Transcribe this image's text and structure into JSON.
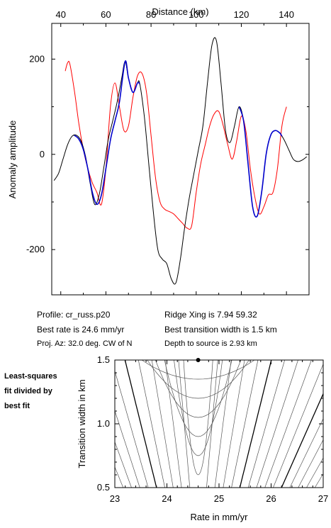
{
  "info": {
    "profile": "Profile: cr_russ.p20",
    "best_rate": "Best rate is 24.6 mm/yr",
    "proj_az": "Proj. Az: 32.0 deg. CW of N",
    "ridge_xing": "Ridge Xing is 7.94 59.32",
    "best_width": "Best transition width is 1.5 km",
    "depth": "Depth to source is   2.93 km"
  },
  "side_note": [
    "Least-squares",
    "fit divided by",
    "best fit"
  ],
  "chart_data": [
    {
      "type": "line",
      "xlabel": "Distance (km)",
      "ylabel": "Anomaly amplitude",
      "xlim": [
        36,
        150
      ],
      "ylim": [
        -295,
        275
      ],
      "x_ticks": [
        40,
        60,
        80,
        100,
        120,
        140
      ],
      "y_ticks": [
        -200,
        0,
        200
      ],
      "x_axis_position": "top",
      "grid": false,
      "colors": {
        "observed": "#000000",
        "fit": "#0000cc",
        "model": "#ff0000"
      },
      "series": [
        {
          "role": "observed",
          "x": [
            37,
            39,
            41,
            43,
            45,
            47,
            49,
            51,
            53,
            55,
            57,
            59,
            61,
            63,
            65,
            67,
            68.5,
            70,
            72,
            74,
            75,
            77,
            79,
            81,
            83,
            85,
            87,
            89,
            91,
            93,
            95,
            97,
            99,
            101,
            103,
            105,
            107,
            109,
            111,
            113,
            115,
            117,
            119,
            121,
            123,
            125,
            127,
            129,
            131,
            133,
            135,
            137,
            139,
            141,
            143,
            145,
            147,
            149
          ],
          "y": [
            -55,
            -40,
            -10,
            20,
            38,
            40,
            28,
            -5,
            -60,
            -105,
            -85,
            -30,
            30,
            70,
            110,
            160,
            195,
            160,
            130,
            150,
            148,
            80,
            -20,
            -120,
            -200,
            -220,
            -230,
            -262,
            -270,
            -220,
            -150,
            -90,
            -40,
            10,
            60,
            150,
            230,
            238,
            150,
            50,
            25,
            60,
            100,
            70,
            -20,
            -110,
            -130,
            -80,
            0,
            40,
            50,
            45,
            30,
            10,
            -10,
            -15,
            -12,
            -5
          ]
        },
        {
          "role": "fit",
          "x": [
            46,
            48,
            50,
            52,
            54,
            56,
            58,
            60,
            62,
            64,
            66,
            68.5,
            70,
            72,
            74,
            75,
            119,
            121,
            123,
            125,
            127,
            129,
            131,
            133,
            135,
            137,
            138
          ],
          "y": [
            40,
            32,
            10,
            -30,
            -80,
            -105,
            -85,
            -30,
            30,
            70,
            110,
            195,
            160,
            130,
            150,
            148,
            100,
            70,
            -20,
            -110,
            -130,
            -80,
            0,
            40,
            50,
            45,
            38
          ]
        },
        {
          "role": "model",
          "x": [
            42,
            43,
            44,
            46,
            48,
            50,
            52,
            54,
            56,
            58,
            60,
            62,
            64,
            66,
            68,
            70,
            72,
            74,
            76,
            78,
            80,
            82,
            84,
            86,
            88,
            90,
            92,
            94,
            96,
            98,
            100,
            102,
            104,
            106,
            108,
            110,
            112,
            114,
            116,
            118,
            120,
            122,
            124,
            126,
            128,
            130,
            132,
            134,
            136,
            138,
            140
          ],
          "y": [
            175,
            192,
            190,
            135,
            65,
            10,
            -30,
            -60,
            -80,
            -105,
            -30,
            100,
            150,
            100,
            50,
            60,
            120,
            165,
            170,
            130,
            40,
            -50,
            -100,
            -115,
            -120,
            -125,
            -135,
            -145,
            -155,
            -150,
            -80,
            -20,
            20,
            60,
            85,
            90,
            60,
            20,
            -10,
            30,
            80,
            50,
            -30,
            -90,
            -125,
            -110,
            -85,
            -80,
            -30,
            60,
            100
          ]
        }
      ]
    },
    {
      "type": "contour",
      "xlabel": "Rate in mm/yr",
      "ylabel": "Transition width in km",
      "xlim": [
        23,
        27
      ],
      "ylim": [
        0.5,
        1.5
      ],
      "x_ticks": [
        23,
        24,
        25,
        26,
        27
      ],
      "y_ticks": [
        0.5,
        1.0,
        1.5
      ],
      "best_fit_point": {
        "x": 24.6,
        "y": 1.5
      }
    }
  ]
}
